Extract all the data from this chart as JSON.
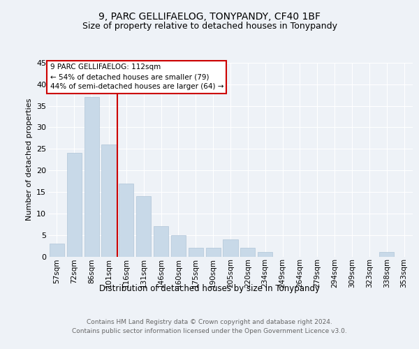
{
  "title1": "9, PARC GELLIFAELOG, TONYPANDY, CF40 1BF",
  "title2": "Size of property relative to detached houses in Tonypandy",
  "xlabel": "Distribution of detached houses by size in Tonypandy",
  "ylabel": "Number of detached properties",
  "categories": [
    "57sqm",
    "72sqm",
    "86sqm",
    "101sqm",
    "116sqm",
    "131sqm",
    "146sqm",
    "160sqm",
    "175sqm",
    "190sqm",
    "205sqm",
    "220sqm",
    "234sqm",
    "249sqm",
    "264sqm",
    "279sqm",
    "294sqm",
    "309sqm",
    "323sqm",
    "338sqm",
    "353sqm"
  ],
  "values": [
    3,
    24,
    37,
    26,
    17,
    14,
    7,
    5,
    2,
    2,
    4,
    2,
    1,
    0,
    0,
    0,
    0,
    0,
    0,
    1,
    0
  ],
  "bar_color": "#c8d9e8",
  "bar_edge_color": "#b0c4d8",
  "vline_color": "#cc0000",
  "annotation_text": "9 PARC GELLIFAELOG: 112sqm\n← 54% of detached houses are smaller (79)\n44% of semi-detached houses are larger (64) →",
  "annotation_box_color": "#ffffff",
  "annotation_box_edge": "#cc0000",
  "ylim": [
    0,
    45
  ],
  "yticks": [
    0,
    5,
    10,
    15,
    20,
    25,
    30,
    35,
    40,
    45
  ],
  "footer": "Contains HM Land Registry data © Crown copyright and database right 2024.\nContains public sector information licensed under the Open Government Licence v3.0.",
  "bg_color": "#eef2f7",
  "grid_color": "#ffffff",
  "title1_fontsize": 10,
  "title2_fontsize": 9,
  "ylabel_fontsize": 8,
  "xlabel_fontsize": 8.5,
  "tick_fontsize": 7.5,
  "footer_fontsize": 6.5
}
